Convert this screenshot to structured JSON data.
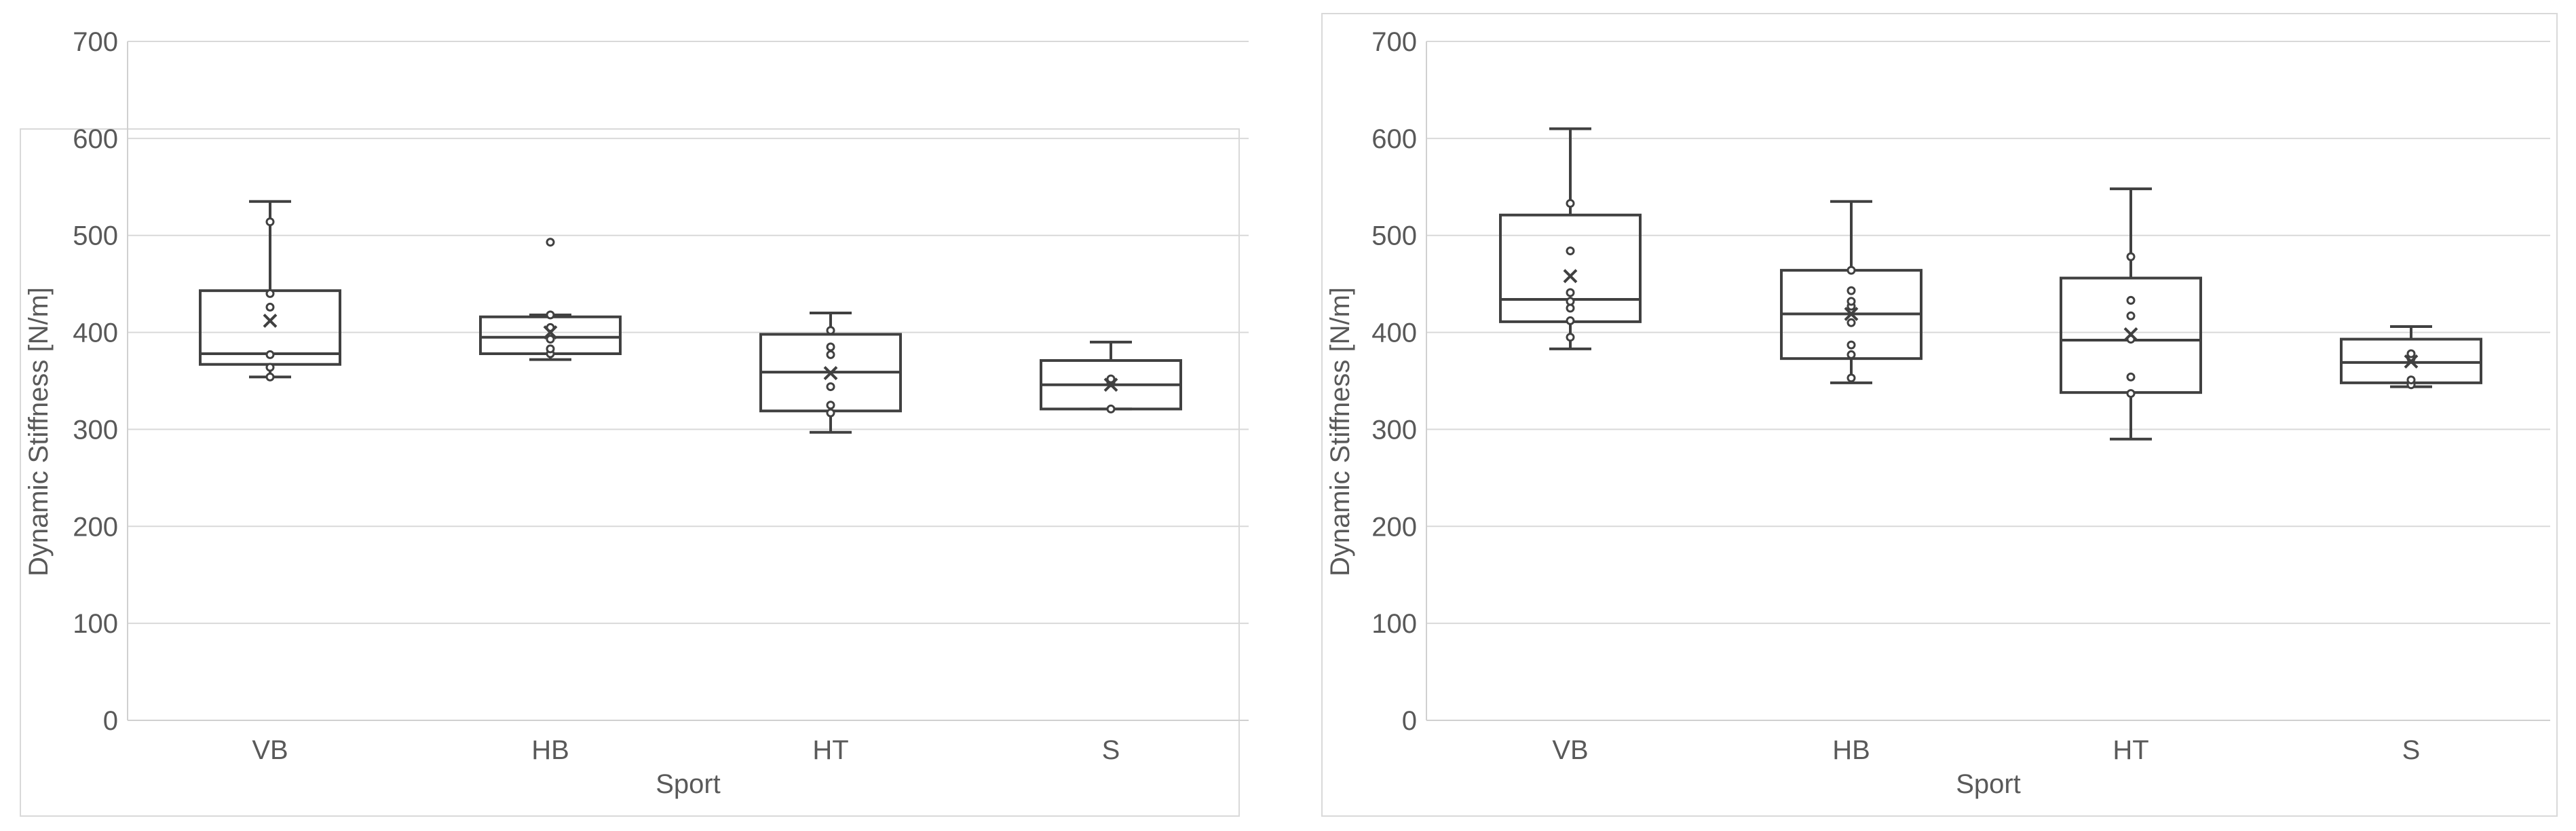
{
  "chart_data": [
    {
      "type": "box",
      "xlabel": "Sport",
      "ylabel": "Dynamic Stiffness [N/m]",
      "ylim": [
        0,
        700
      ],
      "yticks": [
        0,
        100,
        200,
        300,
        400,
        500,
        600,
        700
      ],
      "grid": true,
      "categories": [
        "VB",
        "HB",
        "HT",
        "S"
      ],
      "boxes": [
        {
          "category": "VB",
          "min": 354,
          "q1": 367,
          "median": 378,
          "q3": 443,
          "max": 535,
          "mean": 412,
          "points": [
            354,
            364,
            377,
            426,
            440,
            514
          ]
        },
        {
          "category": "HB",
          "min": 372,
          "q1": 378,
          "median": 395,
          "q3": 416,
          "max": 418,
          "mean": 400,
          "points": [
            378,
            383,
            393,
            405,
            418,
            493
          ]
        },
        {
          "category": "HT",
          "min": 297,
          "q1": 319,
          "median": 359,
          "q3": 398,
          "max": 420,
          "mean": 358,
          "points": [
            317,
            325,
            344,
            377,
            385,
            402
          ]
        },
        {
          "category": "S",
          "min": 321,
          "q1": 321,
          "median": 346,
          "q3": 371,
          "max": 390,
          "mean": 346,
          "points": [
            321,
            348,
            352
          ]
        }
      ]
    },
    {
      "type": "box",
      "xlabel": "Sport",
      "ylabel": "Dynamic Stiffness [N/m]",
      "ylim": [
        0,
        700
      ],
      "yticks": [
        0,
        100,
        200,
        300,
        400,
        500,
        600,
        700
      ],
      "grid": true,
      "categories": [
        "VB",
        "HB",
        "HT",
        "S"
      ],
      "boxes": [
        {
          "category": "VB",
          "min": 383,
          "q1": 411,
          "median": 434,
          "q3": 521,
          "max": 610,
          "mean": 458,
          "points": [
            395,
            412,
            425,
            432,
            441,
            484,
            533
          ]
        },
        {
          "category": "HB",
          "min": 348,
          "q1": 373,
          "median": 419,
          "q3": 464,
          "max": 535,
          "mean": 419,
          "points": [
            353,
            377,
            387,
            410,
            427,
            432,
            443,
            464
          ]
        },
        {
          "category": "HT",
          "min": 290,
          "q1": 338,
          "median": 392,
          "q3": 456,
          "max": 548,
          "mean": 398,
          "points": [
            337,
            354,
            393,
            417,
            433,
            478
          ]
        },
        {
          "category": "S",
          "min": 344,
          "q1": 348,
          "median": 369,
          "q3": 393,
          "max": 406,
          "mean": 370,
          "points": [
            346,
            351,
            373,
            378
          ]
        }
      ]
    }
  ]
}
